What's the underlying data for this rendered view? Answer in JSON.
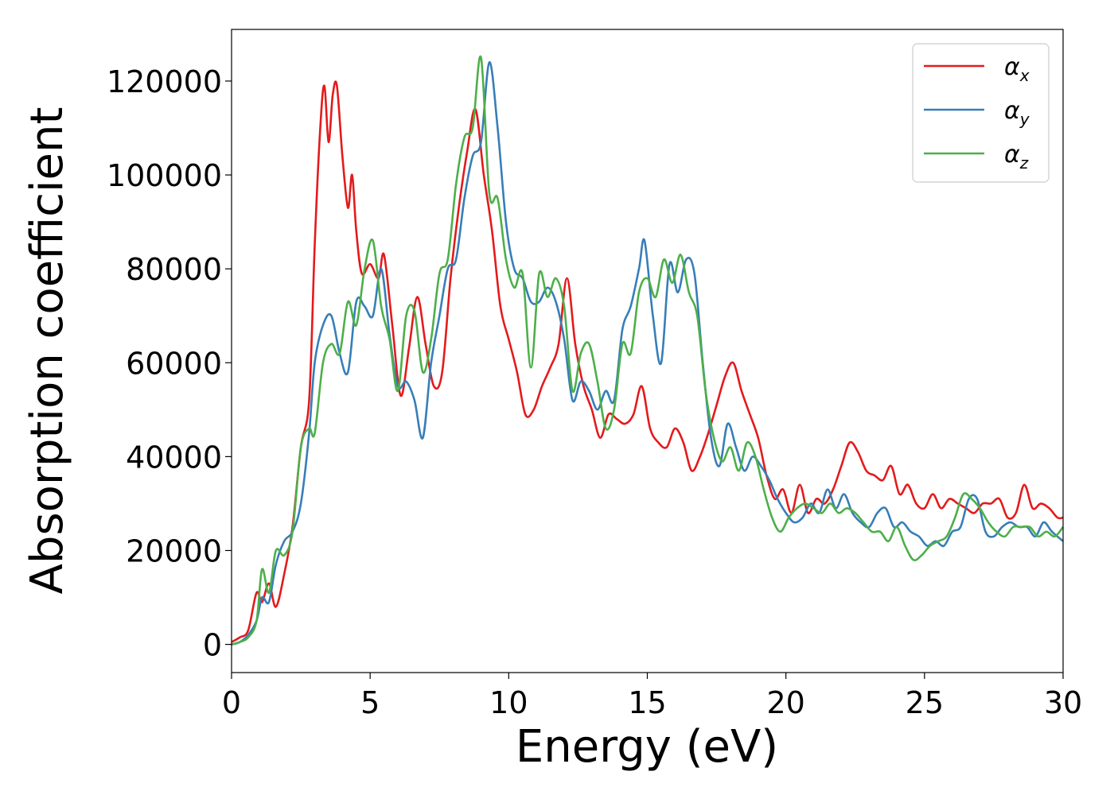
{
  "chart_data": {
    "type": "line",
    "title": "",
    "xlabel": "Energy (eV)",
    "ylabel": "Absorption coefficient",
    "xlim": [
      0,
      30
    ],
    "ylim": [
      -6000,
      131000
    ],
    "xticks": [
      0,
      5,
      10,
      15,
      20,
      25,
      30
    ],
    "yticks": [
      0,
      20000,
      40000,
      60000,
      80000,
      100000,
      120000
    ],
    "grid": false,
    "legend_position": "top-right",
    "series": [
      {
        "name": "α_x",
        "label_main": "α",
        "label_sub": "x",
        "color": "#e41a1c",
        "x": [
          0,
          0.3,
          0.6,
          0.9,
          1.1,
          1.35,
          1.6,
          1.9,
          2.2,
          2.5,
          2.8,
          3.0,
          3.2,
          3.35,
          3.5,
          3.65,
          3.8,
          4.0,
          4.2,
          4.35,
          4.5,
          4.7,
          5.0,
          5.3,
          5.5,
          5.8,
          6.1,
          6.4,
          6.7,
          7.0,
          7.3,
          7.6,
          7.9,
          8.2,
          8.5,
          8.8,
          9.1,
          9.4,
          9.7,
          10.0,
          10.3,
          10.6,
          10.9,
          11.2,
          11.5,
          11.8,
          12.1,
          12.4,
          12.7,
          13.0,
          13.3,
          13.6,
          13.9,
          14.2,
          14.5,
          14.8,
          15.1,
          15.4,
          15.7,
          16.0,
          16.3,
          16.6,
          16.9,
          17.2,
          17.5,
          17.8,
          18.1,
          18.4,
          18.7,
          19.0,
          19.3,
          19.6,
          19.9,
          20.2,
          20.5,
          20.8,
          21.1,
          21.4,
          21.7,
          22.0,
          22.3,
          22.6,
          22.9,
          23.2,
          23.5,
          23.8,
          24.1,
          24.4,
          24.7,
          25.0,
          25.3,
          25.6,
          25.9,
          26.2,
          26.5,
          26.8,
          27.1,
          27.4,
          27.7,
          28.0,
          28.3,
          28.6,
          28.9,
          29.2,
          29.5,
          29.8,
          30.0
        ],
        "y": [
          500,
          1500,
          3000,
          11000,
          9000,
          13000,
          8000,
          15000,
          25000,
          42000,
          52000,
          85000,
          110000,
          119000,
          107000,
          117000,
          119000,
          104000,
          93000,
          100000,
          88000,
          79000,
          81000,
          78000,
          83000,
          68000,
          53000,
          63000,
          74000,
          64000,
          55000,
          58000,
          78000,
          93000,
          105000,
          114000,
          100000,
          88000,
          72000,
          65000,
          58000,
          49000,
          50000,
          55000,
          59000,
          64000,
          78000,
          64000,
          55000,
          50000,
          44000,
          49000,
          48000,
          47000,
          49000,
          55000,
          46000,
          43000,
          42000,
          46000,
          43000,
          37000,
          40000,
          45000,
          51000,
          57000,
          60000,
          54000,
          49000,
          44000,
          36000,
          31000,
          33000,
          28000,
          34000,
          28000,
          31000,
          30000,
          33000,
          38000,
          43000,
          41000,
          37000,
          36000,
          35000,
          38000,
          32000,
          34000,
          30000,
          29000,
          32000,
          29000,
          31000,
          30000,
          29000,
          28000,
          30000,
          30000,
          31000,
          27000,
          28000,
          34000,
          29000,
          30000,
          29000,
          27000,
          27000
        ]
      },
      {
        "name": "α_y",
        "label_main": "α",
        "label_sub": "y",
        "color": "#377eb8",
        "x": [
          0,
          0.3,
          0.6,
          0.9,
          1.1,
          1.35,
          1.6,
          1.9,
          2.2,
          2.5,
          2.8,
          3.0,
          3.3,
          3.6,
          3.9,
          4.2,
          4.5,
          4.8,
          5.1,
          5.4,
          5.7,
          6.0,
          6.3,
          6.6,
          6.9,
          7.2,
          7.5,
          7.8,
          8.1,
          8.4,
          8.7,
          9.0,
          9.3,
          9.6,
          9.9,
          10.2,
          10.5,
          10.8,
          11.1,
          11.4,
          11.7,
          12.0,
          12.3,
          12.6,
          12.9,
          13.2,
          13.5,
          13.8,
          14.1,
          14.4,
          14.7,
          14.9,
          15.2,
          15.5,
          15.8,
          16.1,
          16.4,
          16.7,
          17.0,
          17.3,
          17.6,
          17.9,
          18.2,
          18.5,
          18.8,
          19.1,
          19.4,
          19.7,
          20.0,
          20.3,
          20.6,
          20.9,
          21.2,
          21.5,
          21.8,
          22.1,
          22.4,
          22.7,
          23.0,
          23.3,
          23.6,
          23.9,
          24.2,
          24.5,
          24.8,
          25.1,
          25.4,
          25.7,
          26.0,
          26.3,
          26.6,
          26.9,
          27.2,
          27.5,
          27.8,
          28.1,
          28.4,
          28.7,
          29.0,
          29.3,
          29.6,
          30.0
        ],
        "y": [
          0,
          500,
          2000,
          5000,
          10000,
          9000,
          17000,
          22000,
          24000,
          30000,
          45000,
          60000,
          68000,
          70000,
          62000,
          58000,
          73000,
          72000,
          70000,
          80000,
          66000,
          55000,
          56000,
          52000,
          44000,
          60000,
          70000,
          80000,
          82000,
          95000,
          104000,
          107000,
          124000,
          110000,
          90000,
          80000,
          78000,
          73000,
          73000,
          76000,
          73000,
          65000,
          52000,
          56000,
          54000,
          50000,
          54000,
          52000,
          67000,
          72000,
          80000,
          86000,
          70000,
          60000,
          81000,
          75000,
          82000,
          79000,
          60000,
          44000,
          38000,
          47000,
          42000,
          37000,
          40000,
          38000,
          35000,
          31000,
          28000,
          26000,
          27000,
          30000,
          28000,
          33000,
          29000,
          32000,
          28000,
          26000,
          25000,
          28000,
          29000,
          25000,
          26000,
          24000,
          23000,
          21000,
          22000,
          21000,
          24000,
          25000,
          31000,
          31000,
          24000,
          23000,
          25000,
          26000,
          25000,
          25000,
          23000,
          26000,
          24000,
          22000
        ]
      },
      {
        "name": "α_z",
        "label_main": "α",
        "label_sub": "z",
        "color": "#4daf4a",
        "x": [
          0,
          0.3,
          0.6,
          0.9,
          1.1,
          1.35,
          1.6,
          1.9,
          2.2,
          2.5,
          2.8,
          3.0,
          3.3,
          3.6,
          3.9,
          4.2,
          4.5,
          4.8,
          5.1,
          5.4,
          5.7,
          6.0,
          6.3,
          6.6,
          6.9,
          7.2,
          7.5,
          7.8,
          8.1,
          8.4,
          8.7,
          9.0,
          9.3,
          9.6,
          9.9,
          10.2,
          10.5,
          10.8,
          11.1,
          11.4,
          11.7,
          12.0,
          12.3,
          12.6,
          12.9,
          13.2,
          13.5,
          13.8,
          14.1,
          14.4,
          14.7,
          15.0,
          15.3,
          15.6,
          15.9,
          16.2,
          16.5,
          16.8,
          17.1,
          17.4,
          17.7,
          18.0,
          18.3,
          18.6,
          18.9,
          19.2,
          19.5,
          19.8,
          20.1,
          20.4,
          20.7,
          21.0,
          21.3,
          21.6,
          21.9,
          22.2,
          22.5,
          22.8,
          23.1,
          23.4,
          23.7,
          24.0,
          24.3,
          24.6,
          24.9,
          25.2,
          25.5,
          25.8,
          26.1,
          26.4,
          26.7,
          27.0,
          27.3,
          27.6,
          27.9,
          28.2,
          28.5,
          28.8,
          29.1,
          29.4,
          29.7,
          30.0
        ],
        "y": [
          0,
          500,
          1500,
          5000,
          16000,
          11000,
          20000,
          19000,
          24000,
          42000,
          46000,
          45000,
          60000,
          64000,
          62000,
          73000,
          68000,
          80000,
          86000,
          72000,
          65000,
          54000,
          70000,
          71000,
          58000,
          65000,
          79000,
          82000,
          98000,
          108000,
          110000,
          125000,
          96000,
          95000,
          82000,
          76000,
          79000,
          59000,
          79000,
          74000,
          78000,
          72000,
          54000,
          62000,
          64000,
          56000,
          46000,
          50000,
          64000,
          62000,
          75000,
          78000,
          74000,
          82000,
          77000,
          83000,
          75000,
          70000,
          54000,
          44000,
          39000,
          42000,
          37000,
          43000,
          40000,
          33000,
          27000,
          24000,
          27000,
          29000,
          30000,
          29000,
          28000,
          30000,
          28000,
          29000,
          28000,
          26000,
          24000,
          24000,
          22000,
          25000,
          21000,
          18000,
          19000,
          21000,
          22000,
          23000,
          27000,
          32000,
          31000,
          29000,
          26000,
          24000,
          23000,
          25000,
          25000,
          25000,
          23000,
          24000,
          23000,
          25000
        ]
      }
    ]
  }
}
